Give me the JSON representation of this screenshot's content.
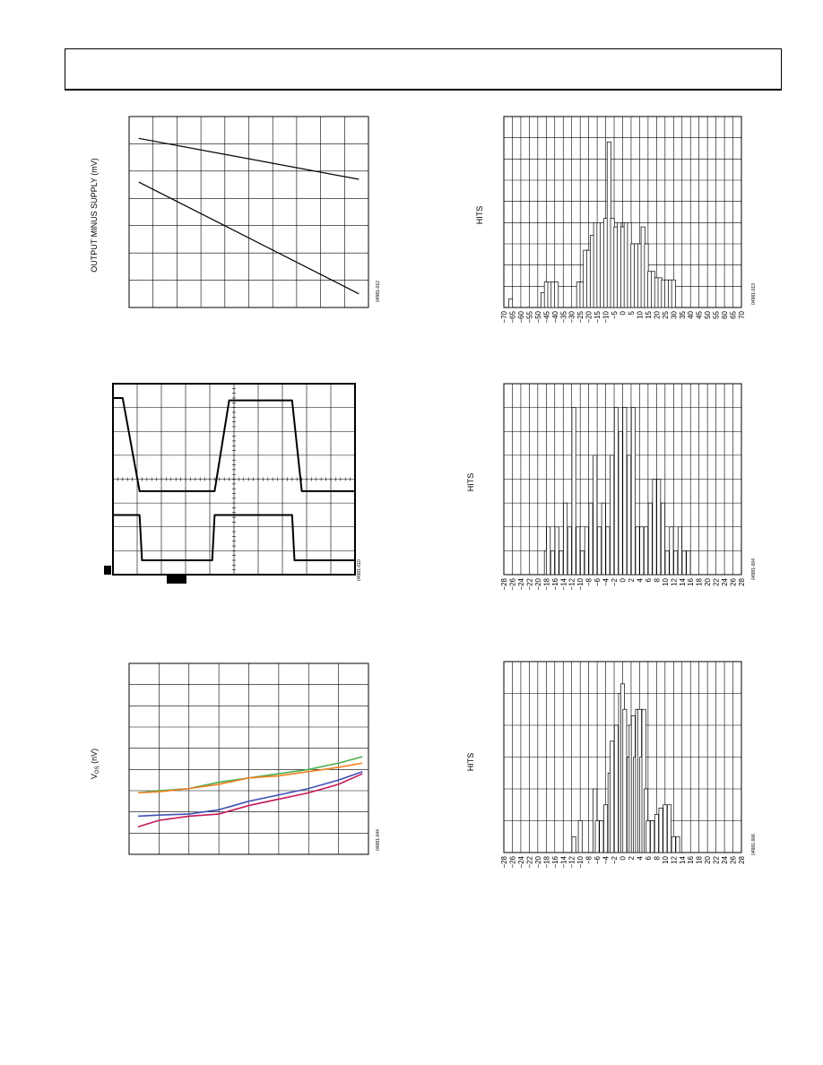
{
  "header": {
    "title": ""
  },
  "charts": [
    {
      "id": "c1",
      "type": "line",
      "ylabel": "OUTPUT MINUS SUPPLY (mV)",
      "code": "04981-012",
      "xlim": [
        0,
        10
      ],
      "ylim": [
        0,
        7
      ],
      "series": [
        {
          "name": "",
          "x": [
            0.4,
            9.6
          ],
          "y": [
            6.2,
            4.7
          ]
        },
        {
          "name": "",
          "x": [
            0.4,
            9.6
          ],
          "y": [
            4.6,
            0.5
          ]
        }
      ]
    },
    {
      "id": "c2",
      "type": "bar",
      "ylabel": "HITS",
      "code": "04981-013",
      "categories": [
        "−70",
        "−65",
        "−60",
        "−55",
        "−50",
        "−45",
        "−40",
        "−35",
        "−30",
        "−25",
        "−20",
        "−15",
        "−10",
        "−5",
        "0",
        "5",
        "10",
        "15",
        "20",
        "25",
        "30",
        "35",
        "40",
        "45",
        "50",
        "55",
        "60",
        "65",
        "70"
      ],
      "ylim": [
        0,
        9
      ],
      "x": [
        -66,
        -47,
        -45,
        -43,
        -41,
        -39,
        -26,
        -24,
        -22,
        -20,
        -18,
        -16,
        -14,
        -12,
        -10,
        -8,
        -6,
        -4,
        -2,
        0,
        2,
        4,
        6,
        8,
        10,
        12,
        14,
        16,
        18,
        20,
        22,
        24,
        26,
        28,
        30
      ],
      "values": [
        0.4,
        0.7,
        1.2,
        1.2,
        1.2,
        1.2,
        1.2,
        1.2,
        2.7,
        2.7,
        3.4,
        4.0,
        4.0,
        4.0,
        4.2,
        7.8,
        4.2,
        3.8,
        4.0,
        3.8,
        4.0,
        4.0,
        3.0,
        3.0,
        3.0,
        3.8,
        3.0,
        1.7,
        1.7,
        1.4,
        1.4,
        1.3,
        1.3,
        1.3,
        1.3
      ]
    },
    {
      "id": "c3",
      "type": "line",
      "ylabel": "",
      "code": "04981-010",
      "xlim": [
        0,
        10
      ],
      "ylim": [
        0,
        8
      ],
      "series": [
        {
          "name": "",
          "x": [
            0,
            0.4,
            1.1,
            4.2,
            4.8,
            7.4,
            7.8,
            10
          ],
          "y": [
            7.4,
            7.4,
            3.5,
            3.5,
            7.3,
            7.3,
            3.5,
            3.5
          ]
        },
        {
          "name": "",
          "x": [
            0,
            1.1,
            1.2,
            4.1,
            4.2,
            7.4,
            7.5,
            10
          ],
          "y": [
            2.5,
            2.5,
            0.6,
            0.6,
            2.5,
            2.5,
            0.6,
            0.6
          ]
        }
      ]
    },
    {
      "id": "c4",
      "type": "bar",
      "ylabel": "HITS",
      "code": "04981-004",
      "categories": [
        "−28",
        "−26",
        "−24",
        "−22",
        "−20",
        "−18",
        "−16",
        "−14",
        "−12",
        "−10",
        "−8",
        "−6",
        "−4",
        "−2",
        "0",
        "2",
        "4",
        "6",
        "8",
        "10",
        "12",
        "14",
        "16",
        "18",
        "20",
        "22",
        "24",
        "26",
        "28"
      ],
      "ylim": [
        0,
        8
      ],
      "x": [
        -18,
        -17.5,
        -16.5,
        -15.5,
        -14.5,
        -13.5,
        -12.5,
        -11.5,
        -10.5,
        -9.5,
        -8.5,
        -7.5,
        -6.5,
        -5.5,
        -4.5,
        -3.5,
        -2.5,
        -1.5,
        -0.5,
        0.5,
        1.5,
        2.5,
        3.5,
        4.5,
        5.5,
        6.5,
        7.5,
        8.5,
        9.5,
        10.5,
        11.5,
        12.5,
        13.5,
        14.5,
        15.5
      ],
      "values": [
        1,
        2,
        1,
        2,
        1,
        3,
        2,
        7,
        2,
        1,
        2,
        3,
        5,
        2,
        3,
        2,
        5,
        7,
        6,
        7,
        5,
        7,
        2,
        2,
        2,
        3,
        4,
        4,
        3,
        1,
        2,
        1,
        2,
        1,
        1
      ]
    },
    {
      "id": "c5",
      "type": "line",
      "ylabel": "V",
      "ylabel_sub": "OS",
      "ylabel_unit": " (nV)",
      "code": "04981-044",
      "xlim": [
        0,
        8
      ],
      "ylim": [
        0,
        9
      ],
      "series": [
        {
          "name": "",
          "color": "#4caf50",
          "x": [
            0.3,
            1.0,
            2.0,
            3.0,
            4.0,
            5.0,
            6.0,
            7.0,
            7.8
          ],
          "y": [
            2.9,
            3.0,
            3.1,
            3.4,
            3.6,
            3.8,
            4.0,
            4.3,
            4.6
          ]
        },
        {
          "name": "",
          "color": "#f07f1e",
          "x": [
            0.3,
            1.0,
            2.0,
            3.0,
            4.0,
            5.0,
            6.0,
            7.0,
            7.8
          ],
          "y": [
            2.9,
            2.95,
            3.1,
            3.3,
            3.6,
            3.7,
            3.9,
            4.1,
            4.3
          ]
        },
        {
          "name": "",
          "color": "#3f51b5",
          "x": [
            0.3,
            1.0,
            2.0,
            3.0,
            4.0,
            5.0,
            6.0,
            7.0,
            7.8
          ],
          "y": [
            1.8,
            1.85,
            1.9,
            2.1,
            2.5,
            2.8,
            3.1,
            3.5,
            3.9
          ]
        },
        {
          "name": "",
          "color": "#c2185b",
          "x": [
            0.3,
            1.0,
            2.0,
            3.0,
            4.0,
            5.0,
            6.0,
            7.0,
            7.8
          ],
          "y": [
            1.3,
            1.6,
            1.8,
            1.9,
            2.3,
            2.6,
            2.9,
            3.3,
            3.8
          ]
        }
      ]
    },
    {
      "id": "c6",
      "type": "bar",
      "ylabel": "HITS",
      "code": "04981-006",
      "categories": [
        "−28",
        "−26",
        "−24",
        "−22",
        "−20",
        "−18",
        "−16",
        "−14",
        "−12",
        "−10",
        "−8",
        "−6",
        "−4",
        "−2",
        "0",
        "2",
        "4",
        "6",
        "8",
        "10",
        "12",
        "14",
        "16",
        "18",
        "20",
        "22",
        "24",
        "26",
        "28"
      ],
      "ylim": [
        0,
        6
      ],
      "x": [
        -11.5,
        -10,
        -6.5,
        -6,
        -5,
        -4,
        -3,
        -2.5,
        -1.5,
        -0.5,
        0,
        0.5,
        1.5,
        2,
        2.5,
        3,
        3.5,
        4,
        4.5,
        5,
        5.5,
        6,
        7,
        8,
        9,
        10,
        11,
        12,
        13
      ],
      "values": [
        0.5,
        1,
        2,
        1,
        1,
        1.5,
        2.5,
        3.5,
        4,
        5,
        5.3,
        4.5,
        3,
        4,
        4.3,
        3,
        4.5,
        4.5,
        3,
        4.5,
        2,
        1,
        1,
        1.2,
        1.4,
        1.5,
        1.5,
        0.5,
        0.5
      ]
    }
  ]
}
